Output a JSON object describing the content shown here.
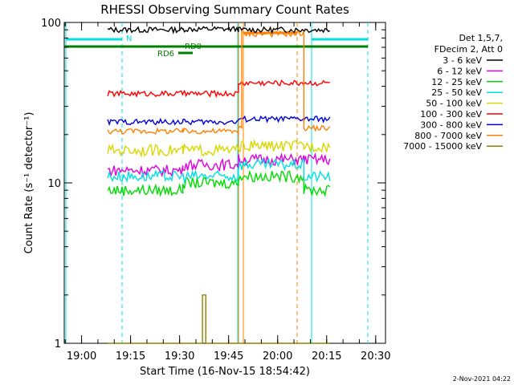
{
  "chart_data": {
    "type": "line",
    "title": "RHESSI Observing Summary Count Rates",
    "xlabel": "Start Time (16-Nov-15 18:54:42)",
    "ylabel": "Count Rate (s⁻¹ detector⁻¹)",
    "yscale": "log",
    "ylim": [
      1,
      100
    ],
    "xlim": [
      "18:54:42",
      "20:33:00"
    ],
    "y_ticks": [
      {
        "value": 1,
        "label": "1"
      },
      {
        "value": 10,
        "label": "10"
      },
      {
        "value": 100,
        "label": "100"
      }
    ],
    "x_ticks": [
      {
        "value": "19:00",
        "label": "19:00"
      },
      {
        "value": "19:15",
        "label": "19:15"
      },
      {
        "value": "19:30",
        "label": "19:30"
      },
      {
        "value": "19:45",
        "label": "19:45"
      },
      {
        "value": "20:00",
        "label": "20:00"
      },
      {
        "value": "20:15",
        "label": "20:15"
      },
      {
        "value": "20:30",
        "label": "20:30"
      }
    ],
    "legend": {
      "placement": "right",
      "header": [
        "Det 1,5,7,",
        "FDecim 2, Att 0"
      ]
    },
    "series": [
      {
        "name": "3 - 6 keV",
        "color": "#000000",
        "points": [
          [
            "19:08",
            90
          ],
          [
            "19:31",
            91
          ],
          [
            "19:48",
            90
          ],
          [
            "20:08",
            90
          ],
          [
            "20:16",
            88
          ]
        ]
      },
      {
        "name": "6 - 12 keV",
        "color": "#e000e0",
        "points": [
          [
            "19:08",
            12
          ],
          [
            "19:31",
            13
          ],
          [
            "19:48",
            14
          ],
          [
            "20:08",
            14
          ],
          [
            "20:16",
            13
          ]
        ]
      },
      {
        "name": "12 - 25 keV",
        "color": "#00dd00",
        "points": [
          [
            "19:08",
            9
          ],
          [
            "19:31",
            10
          ],
          [
            "19:48",
            11
          ],
          [
            "20:08",
            9
          ],
          [
            "20:16",
            8
          ]
        ]
      },
      {
        "name": "25 - 50 keV",
        "color": "#00e0e0",
        "points": [
          [
            "19:08",
            11
          ],
          [
            "19:31",
            11
          ],
          [
            "19:48",
            13
          ],
          [
            "20:08",
            11
          ],
          [
            "20:16",
            10
          ]
        ]
      },
      {
        "name": "50 - 100 keV",
        "color": "#d8d800",
        "points": [
          [
            "19:08",
            16
          ],
          [
            "19:31",
            16
          ],
          [
            "19:48",
            17
          ],
          [
            "20:08",
            17
          ],
          [
            "20:16",
            17
          ]
        ]
      },
      {
        "name": "100 - 300 keV",
        "color": "#ff0000",
        "points": [
          [
            "19:08",
            36
          ],
          [
            "19:31",
            36
          ],
          [
            "19:48",
            42
          ],
          [
            "20:08",
            42
          ],
          [
            "20:16",
            40
          ]
        ]
      },
      {
        "name": "300 - 800 keV",
        "color": "#0000dd",
        "points": [
          [
            "19:08",
            24
          ],
          [
            "19:31",
            24
          ],
          [
            "19:48",
            25
          ],
          [
            "20:08",
            25
          ],
          [
            "20:16",
            24
          ]
        ]
      },
      {
        "name": "800 - 7000 keV",
        "color": "#ff8000",
        "points": [
          [
            "19:08",
            21
          ],
          [
            "19:31",
            21
          ],
          [
            "19:48",
            22
          ],
          [
            "19:49",
            85
          ],
          [
            "20:07",
            85
          ],
          [
            "20:08",
            22
          ],
          [
            "20:16",
            20
          ]
        ]
      },
      {
        "name": "7000 - 15000 keV",
        "color": "#908000",
        "points": [
          [
            "19:08",
            1
          ],
          [
            "19:35",
            1
          ],
          [
            "19:37",
            2
          ],
          [
            "19:38",
            1
          ],
          [
            "20:16",
            1
          ]
        ]
      }
    ],
    "annotations": [
      {
        "text": "N",
        "color": "#00e0e0"
      },
      {
        "text": "RD6",
        "color": "#008000"
      },
      {
        "text": "RD0",
        "color": "#008000"
      }
    ]
  },
  "footer": {
    "timestamp": "2-Nov-2021 04:22"
  }
}
